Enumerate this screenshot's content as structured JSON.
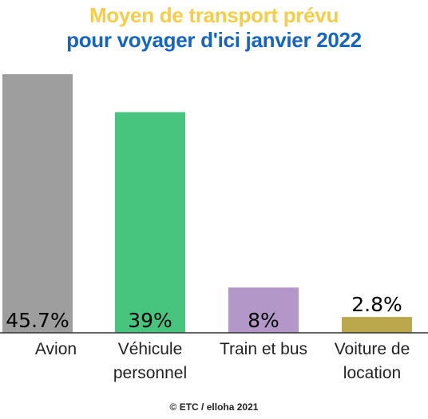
{
  "header": {
    "title_line1": "Moyen de transport prévu",
    "title_line2": "pour voyager d'ici janvier 2022",
    "title_line1_color": "#F5CD4A",
    "title_line2_color": "#1565C0"
  },
  "chart_data": {
    "type": "bar",
    "categories": [
      "Avion",
      "Véhicule personnel",
      "Train et bus",
      "Voiture de location"
    ],
    "category_lines": [
      [
        "Avion"
      ],
      [
        "Véhicule",
        "personnel"
      ],
      [
        "Train et bus"
      ],
      [
        "Voiture de",
        "location"
      ]
    ],
    "values": [
      45.7,
      39,
      8,
      2.8
    ],
    "value_labels": [
      "45.7%",
      "39%",
      "8%",
      "2.8%"
    ],
    "colors": [
      "#9E9E9E",
      "#47C47E",
      "#B497C9",
      "#BBA84D"
    ],
    "ylim": [
      0,
      45.7
    ],
    "grid": false,
    "legend": "none"
  },
  "footer": {
    "credit": "© ETC / elloha 2021"
  }
}
